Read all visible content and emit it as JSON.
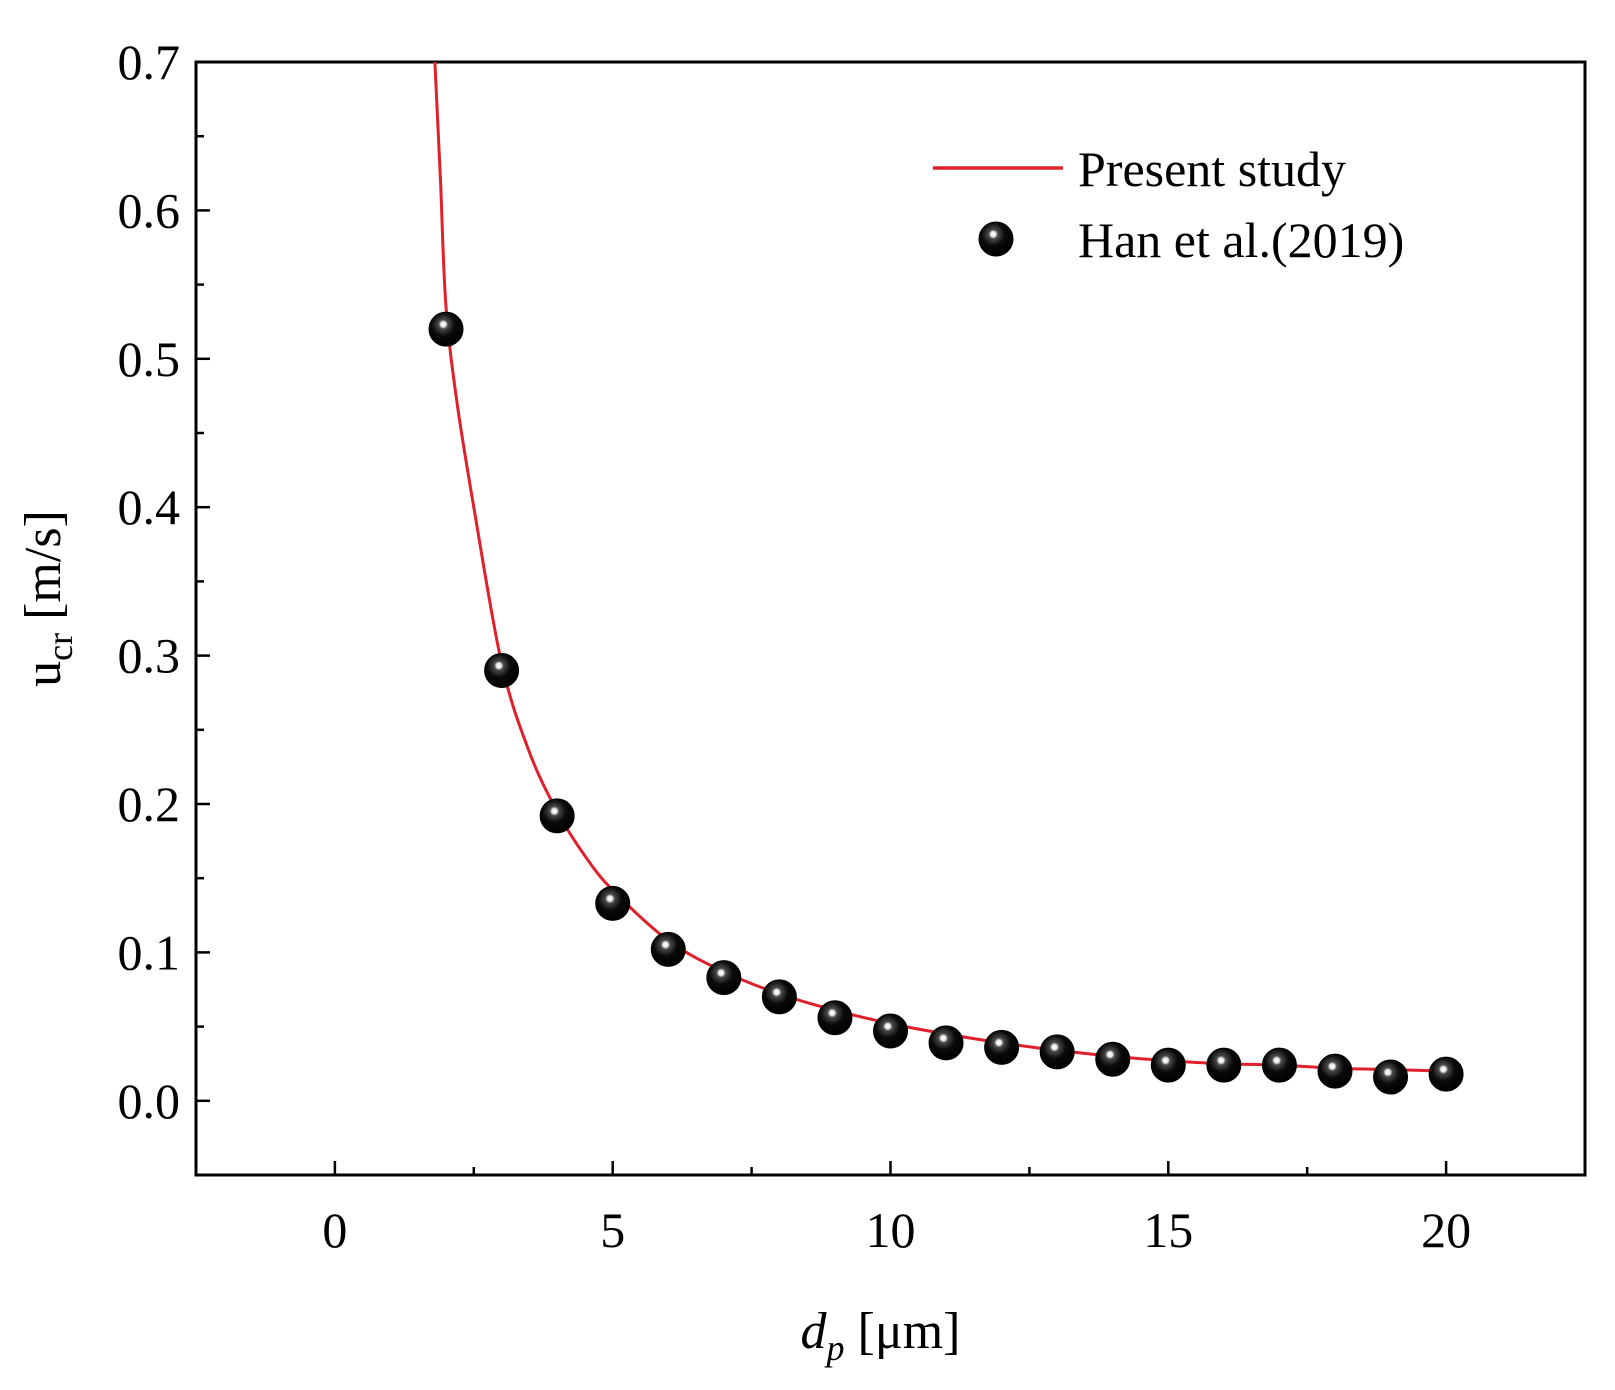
{
  "chart_data": {
    "type": "line+scatter",
    "title": "",
    "xlabel": {
      "main": "d",
      "sub": "p",
      "unit": " [μm]"
    },
    "ylabel": {
      "main": "u",
      "sub": "cr",
      "unit": " [m/s]"
    },
    "xlim": [
      -2.5,
      22.5
    ],
    "ylim": [
      -0.05,
      0.7
    ],
    "xticks": [
      0,
      5,
      10,
      15,
      20
    ],
    "xtick_labels": [
      "0",
      "5",
      "10",
      "15",
      "20"
    ],
    "yticks": [
      0.0,
      0.1,
      0.2,
      0.3,
      0.4,
      0.5,
      0.6,
      0.7
    ],
    "ytick_labels": [
      "0.0",
      "0.1",
      "0.2",
      "0.3",
      "0.4",
      "0.5",
      "0.6",
      "0.7"
    ],
    "grid": false,
    "legend_position": "top-right",
    "series": [
      {
        "name": "Present study",
        "kind": "line",
        "color": "#e0202a",
        "x": [
          1.8,
          1.9,
          2.0,
          2.2,
          2.5,
          3.0,
          3.5,
          4.0,
          4.5,
          5.0,
          6.0,
          7.0,
          8.0,
          9.0,
          10.0,
          11.0,
          12.0,
          13.0,
          14.0,
          15.0,
          16.0,
          17.0,
          18.0,
          19.0,
          20.0
        ],
        "y": [
          0.7,
          0.62,
          0.535,
          0.47,
          0.4,
          0.295,
          0.235,
          0.195,
          0.165,
          0.142,
          0.108,
          0.087,
          0.072,
          0.061,
          0.052,
          0.045,
          0.039,
          0.034,
          0.03,
          0.027,
          0.025,
          0.024,
          0.022,
          0.021,
          0.02
        ]
      },
      {
        "name": "Han et al.(2019)",
        "kind": "scatter",
        "color": "#000000",
        "x": [
          2,
          3,
          4,
          5,
          6,
          7,
          8,
          9,
          10,
          11,
          12,
          13,
          14,
          15,
          16,
          17,
          18,
          19,
          20
        ],
        "y": [
          0.52,
          0.29,
          0.192,
          0.133,
          0.102,
          0.083,
          0.07,
          0.056,
          0.047,
          0.039,
          0.036,
          0.033,
          0.028,
          0.024,
          0.024,
          0.024,
          0.02,
          0.016,
          0.018
        ]
      }
    ]
  }
}
